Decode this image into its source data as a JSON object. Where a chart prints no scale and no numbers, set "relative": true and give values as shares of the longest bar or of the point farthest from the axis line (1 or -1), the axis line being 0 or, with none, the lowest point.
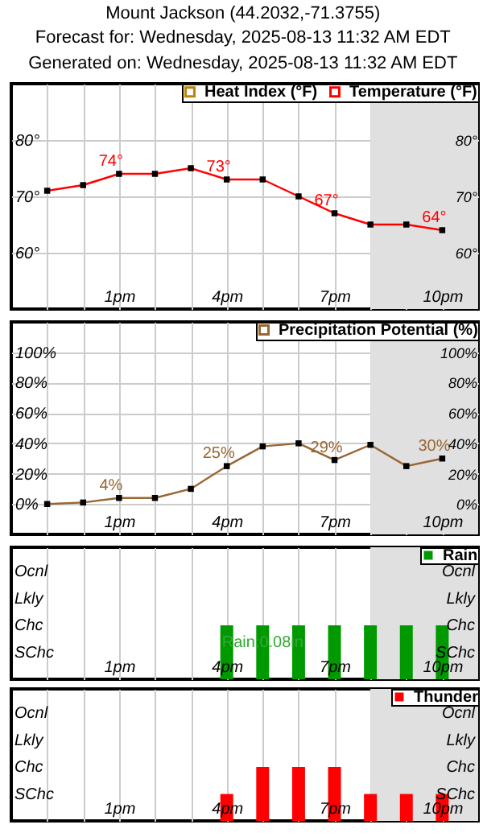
{
  "chart_data": [
    {
      "type": "line",
      "title": "Mount Jackson (44.2032,-71.3755)",
      "subtitle": "Forecast for: Wednesday, 2025-08-13 11:32 AM EDT",
      "annotations": [
        "Generated on: Wednesday, 2025-08-13 11:32 AM EDT"
      ],
      "x": [
        "2025-08-13T11:00",
        "2025-08-13T12:00",
        "2025-08-13T13:00",
        "2025-08-13T14:00",
        "2025-08-13T15:00",
        "2025-08-13T16:00",
        "2025-08-13T17:00",
        "2025-08-13T18:00",
        "2025-08-13T19:00",
        "2025-08-13T20:00",
        "2025-08-13T21:00",
        "2025-08-13T22:00"
      ],
      "series": [
        {
          "name": "Heat Index (°F)",
          "color": "#b8860b",
          "values": [
            null,
            null,
            null,
            null,
            null,
            null,
            null,
            null,
            null,
            null,
            null,
            null
          ]
        },
        {
          "name": "Temperature (°F)",
          "color": "#ff0000",
          "values": [
            71,
            72,
            74,
            74,
            75,
            73,
            73,
            70,
            67,
            65,
            65,
            64
          ],
          "value_labels": [
            null,
            null,
            "74°",
            null,
            null,
            "73°",
            null,
            null,
            "67°",
            null,
            null,
            "64°"
          ]
        }
      ],
      "xlim": [
        "2025-08-13T10:00",
        "2025-08-13T23:00"
      ],
      "xticks": [
        {
          "value": "2025-08-13T11:00",
          "label": null
        },
        {
          "value": "2025-08-13T12:00",
          "label": null
        },
        {
          "value": "2025-08-13T13:00",
          "label": "1pm"
        },
        {
          "value": "2025-08-13T14:00",
          "label": null
        },
        {
          "value": "2025-08-13T15:00",
          "label": null
        },
        {
          "value": "2025-08-13T16:00",
          "label": "4pm"
        },
        {
          "value": "2025-08-13T17:00",
          "label": null
        },
        {
          "value": "2025-08-13T18:00",
          "label": null
        },
        {
          "value": "2025-08-13T19:00",
          "label": "7pm"
        },
        {
          "value": "2025-08-13T20:00",
          "label": null
        },
        {
          "value": "2025-08-13T21:00",
          "label": null
        },
        {
          "value": "2025-08-13T22:00",
          "label": "10pm"
        }
      ],
      "ylim": [
        50,
        90
      ],
      "yticks": [
        {
          "value": 60,
          "label": "60°"
        },
        {
          "value": 70,
          "label": "70°"
        },
        {
          "value": 80,
          "label": "80°"
        }
      ],
      "y2lim": [
        50,
        90
      ],
      "y2ticks": [
        {
          "value": 60,
          "label": "60°"
        },
        {
          "value": 70,
          "label": "70°"
        },
        {
          "value": 80,
          "label": "80°"
        }
      ],
      "bands": [
        {
          "axis": "x",
          "from": "2025-08-13T20:00",
          "to": "2025-08-13T23:00",
          "color": "#e0e0e0"
        }
      ],
      "grid": true,
      "legend": "top right",
      "marker": "square",
      "line_style": "solid"
    },
    {
      "type": "line",
      "x": [
        "2025-08-13T11:00",
        "2025-08-13T12:00",
        "2025-08-13T13:00",
        "2025-08-13T14:00",
        "2025-08-13T15:00",
        "2025-08-13T16:00",
        "2025-08-13T17:00",
        "2025-08-13T18:00",
        "2025-08-13T19:00",
        "2025-08-13T20:00",
        "2025-08-13T21:00",
        "2025-08-13T22:00"
      ],
      "series": [
        {
          "name": "Precipitation Potential (%)",
          "color": "#996633",
          "values": [
            0,
            1,
            4,
            4,
            10,
            25,
            38,
            40,
            29,
            39,
            25,
            30
          ],
          "value_labels": [
            null,
            null,
            "4%",
            null,
            null,
            "25%",
            null,
            null,
            "29%",
            null,
            null,
            "30%"
          ]
        }
      ],
      "xlim": [
        "2025-08-13T10:00",
        "2025-08-13T23:00"
      ],
      "xticks": [
        {
          "value": "2025-08-13T11:00",
          "label": null
        },
        {
          "value": "2025-08-13T12:00",
          "label": null
        },
        {
          "value": "2025-08-13T13:00",
          "label": "1pm"
        },
        {
          "value": "2025-08-13T14:00",
          "label": null
        },
        {
          "value": "2025-08-13T15:00",
          "label": null
        },
        {
          "value": "2025-08-13T16:00",
          "label": "4pm"
        },
        {
          "value": "2025-08-13T17:00",
          "label": null
        },
        {
          "value": "2025-08-13T18:00",
          "label": null
        },
        {
          "value": "2025-08-13T19:00",
          "label": "7pm"
        },
        {
          "value": "2025-08-13T20:00",
          "label": null
        },
        {
          "value": "2025-08-13T21:00",
          "label": null
        },
        {
          "value": "2025-08-13T22:00",
          "label": "10pm"
        }
      ],
      "ylim": [
        -20,
        120
      ],
      "yticks": [
        {
          "value": 0,
          "label": "0%"
        },
        {
          "value": 20,
          "label": "20%"
        },
        {
          "value": 40,
          "label": "40%"
        },
        {
          "value": 60,
          "label": "60%"
        },
        {
          "value": 80,
          "label": "80%"
        },
        {
          "value": 100,
          "label": "100%"
        }
      ],
      "y2lim": [
        -20,
        120
      ],
      "y2ticks": [
        {
          "value": 0,
          "label": "0%"
        },
        {
          "value": 20,
          "label": "20%"
        },
        {
          "value": 40,
          "label": "40%"
        },
        {
          "value": 60,
          "label": "60%"
        },
        {
          "value": 80,
          "label": "80%"
        },
        {
          "value": 100,
          "label": "100%"
        }
      ],
      "bands": [
        {
          "axis": "x",
          "from": "2025-08-13T20:00",
          "to": "2025-08-13T23:00",
          "color": "#e0e0e0"
        }
      ],
      "grid": true,
      "legend": "top right",
      "marker": "square",
      "line_style": "solid"
    },
    {
      "type": "bar",
      "relative": true,
      "annotations": [
        "Ocnl",
        "Lkly",
        "Chc",
        "SChc",
        {
          "text": "Rain:0.08in",
          "x": "2025-08-13T17:00"
        }
      ],
      "x": [
        "2025-08-13T16:00",
        "2025-08-13T17:00",
        "2025-08-13T18:00",
        "2025-08-13T19:00",
        "2025-08-13T20:00",
        "2025-08-13T21:00",
        "2025-08-13T22:00"
      ],
      "series": [
        {
          "name": "Rain",
          "color": "#009900",
          "values": [
            1,
            1,
            1,
            1,
            1,
            1,
            1
          ]
        }
      ],
      "xlim": [
        "2025-08-13T10:00",
        "2025-08-13T23:00"
      ],
      "xticks": [
        {
          "value": "2025-08-13T11:00",
          "label": null
        },
        {
          "value": "2025-08-13T12:00",
          "label": null
        },
        {
          "value": "2025-08-13T13:00",
          "label": "1pm"
        },
        {
          "value": "2025-08-13T14:00",
          "label": null
        },
        {
          "value": "2025-08-13T15:00",
          "label": null
        },
        {
          "value": "2025-08-13T16:00",
          "label": "4pm"
        },
        {
          "value": "2025-08-13T17:00",
          "label": null
        },
        {
          "value": "2025-08-13T18:00",
          "label": null
        },
        {
          "value": "2025-08-13T19:00",
          "label": "7pm"
        },
        {
          "value": "2025-08-13T20:00",
          "label": null
        },
        {
          "value": "2025-08-13T21:00",
          "label": null
        },
        {
          "value": "2025-08-13T22:00",
          "label": "10pm"
        }
      ],
      "bands": [
        {
          "axis": "x",
          "from": "2025-08-13T20:00",
          "to": "2025-08-13T23:00",
          "color": "#e0e0e0"
        }
      ],
      "grid": "x",
      "legend": "top right"
    },
    {
      "type": "bar",
      "relative": true,
      "annotations": [
        "Ocnl",
        "Lkly",
        "Chc",
        "SChc"
      ],
      "x": [
        "2025-08-13T16:00",
        "2025-08-13T17:00",
        "2025-08-13T18:00",
        "2025-08-13T19:00",
        "2025-08-13T20:00",
        "2025-08-13T21:00",
        "2025-08-13T22:00"
      ],
      "series": [
        {
          "name": "Thunder",
          "color": "#ff0000",
          "values": [
            0.5,
            1,
            1,
            1,
            0.5,
            0.5,
            0.5
          ]
        }
      ],
      "xlim": [
        "2025-08-13T10:00",
        "2025-08-13T23:00"
      ],
      "xticks": [
        {
          "value": "2025-08-13T11:00",
          "label": null
        },
        {
          "value": "2025-08-13T12:00",
          "label": null
        },
        {
          "value": "2025-08-13T13:00",
          "label": "1pm"
        },
        {
          "value": "2025-08-13T14:00",
          "label": null
        },
        {
          "value": "2025-08-13T15:00",
          "label": null
        },
        {
          "value": "2025-08-13T16:00",
          "label": "4pm"
        },
        {
          "value": "2025-08-13T17:00",
          "label": null
        },
        {
          "value": "2025-08-13T18:00",
          "label": null
        },
        {
          "value": "2025-08-13T19:00",
          "label": "7pm"
        },
        {
          "value": "2025-08-13T20:00",
          "label": null
        },
        {
          "value": "2025-08-13T21:00",
          "label": null
        },
        {
          "value": "2025-08-13T22:00",
          "label": "10pm"
        }
      ],
      "bands": [
        {
          "axis": "x",
          "from": "2025-08-13T20:00",
          "to": "2025-08-13T23:00",
          "color": "#e0e0e0"
        }
      ],
      "grid": "x",
      "legend": "top right"
    }
  ]
}
